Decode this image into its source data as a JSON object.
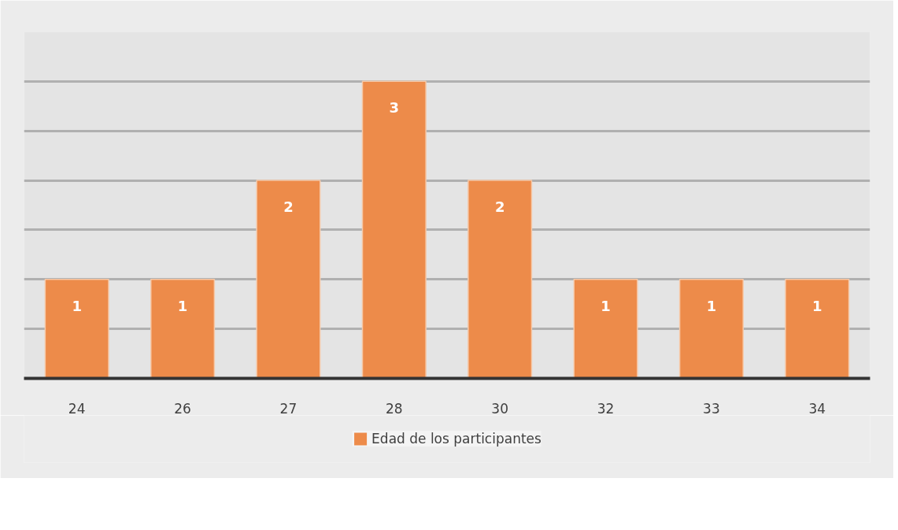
{
  "chart_data": {
    "type": "bar",
    "categories": [
      "24",
      "26",
      "27",
      "28",
      "30",
      "32",
      "33",
      "34"
    ],
    "series": [
      {
        "name": "Edad de los participantes",
        "color": "#ed8b4a",
        "values": [
          1,
          1,
          2,
          3,
          2,
          1,
          1,
          1
        ]
      }
    ],
    "data_labels": true,
    "ylim": [
      0,
      3.5
    ],
    "yticks": [
      {
        "value": 0,
        "label": null
      },
      {
        "value": 0.5,
        "label": null
      },
      {
        "value": 1,
        "label": null
      },
      {
        "value": 1.5,
        "label": null
      },
      {
        "value": 2,
        "label": null
      },
      {
        "value": 2.5,
        "label": null
      },
      {
        "value": 3,
        "label": null
      },
      {
        "value": 3.5,
        "label": null
      }
    ],
    "tick_labels": "x",
    "grid": "y",
    "legend": "bottom"
  }
}
